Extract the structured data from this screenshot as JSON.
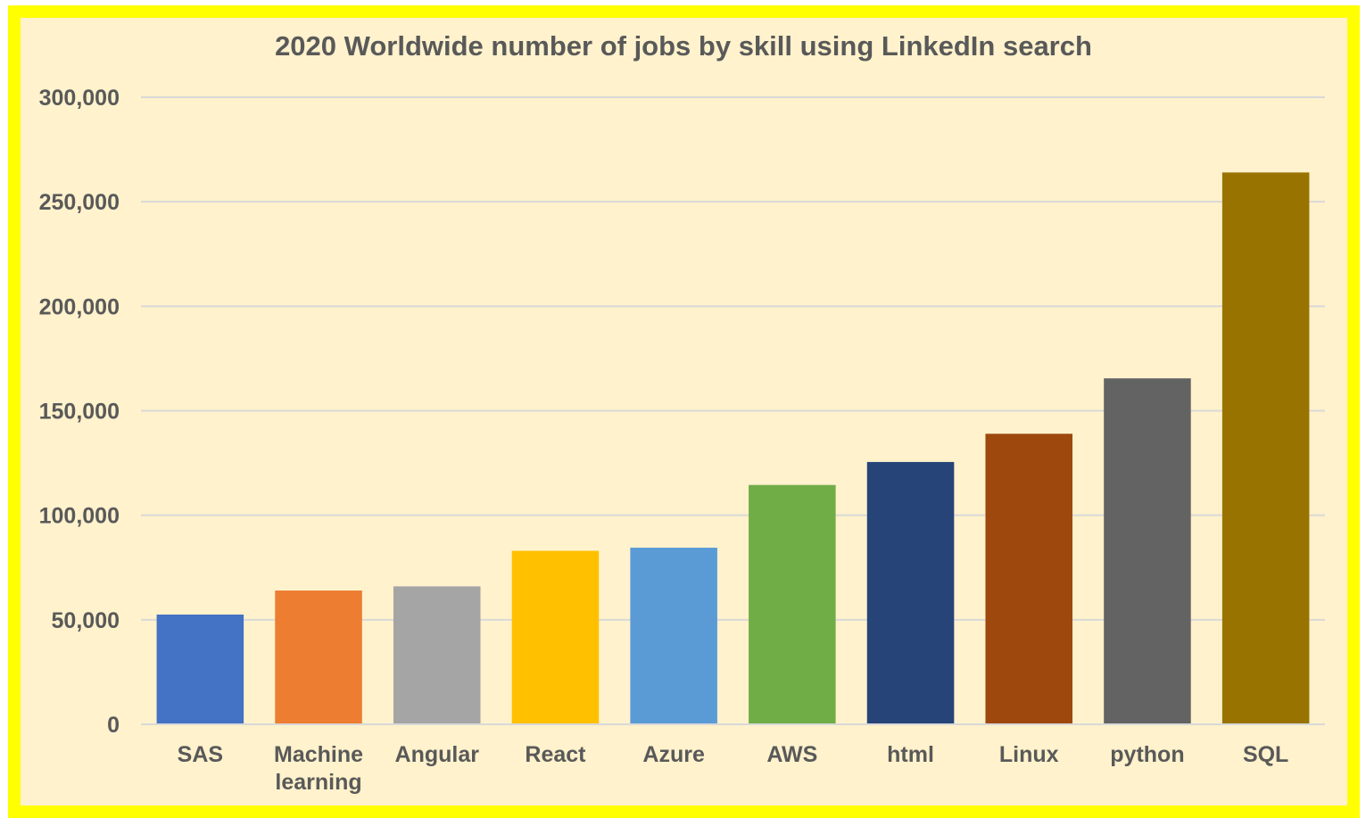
{
  "chart_data": {
    "type": "bar",
    "title": "2020 Worldwide number of jobs by skill using LinkedIn search",
    "xlabel": "",
    "ylabel": "",
    "ylim": [
      0,
      300000
    ],
    "yticks": [
      0,
      50000,
      100000,
      150000,
      200000,
      250000,
      300000
    ],
    "ytick_labels": [
      "0",
      "50,000",
      "100,000",
      "150,000",
      "200,000",
      "250,000",
      "300,000"
    ],
    "grid": true,
    "legend": "none",
    "categories": [
      "SAS",
      "Machine learning",
      "Angular",
      "React",
      "Azure",
      "AWS",
      "html",
      "Linux",
      "python",
      "SQL"
    ],
    "category_lines": [
      [
        "SAS"
      ],
      [
        "Machine",
        "learning"
      ],
      [
        "Angular"
      ],
      [
        "React"
      ],
      [
        "Azure"
      ],
      [
        "AWS"
      ],
      [
        "html"
      ],
      [
        "Linux"
      ],
      [
        "python"
      ],
      [
        "SQL"
      ]
    ],
    "values": [
      52500,
      64000,
      66000,
      83000,
      84500,
      114500,
      125500,
      139000,
      165500,
      264000
    ],
    "colors": [
      "#4472c4",
      "#ed7d31",
      "#a5a5a5",
      "#ffc000",
      "#5b9bd5",
      "#70ad47",
      "#264478",
      "#9e480e",
      "#636363",
      "#997300"
    ],
    "frame_border_color": "#ffff00",
    "background_color": "#fff2cc"
  }
}
